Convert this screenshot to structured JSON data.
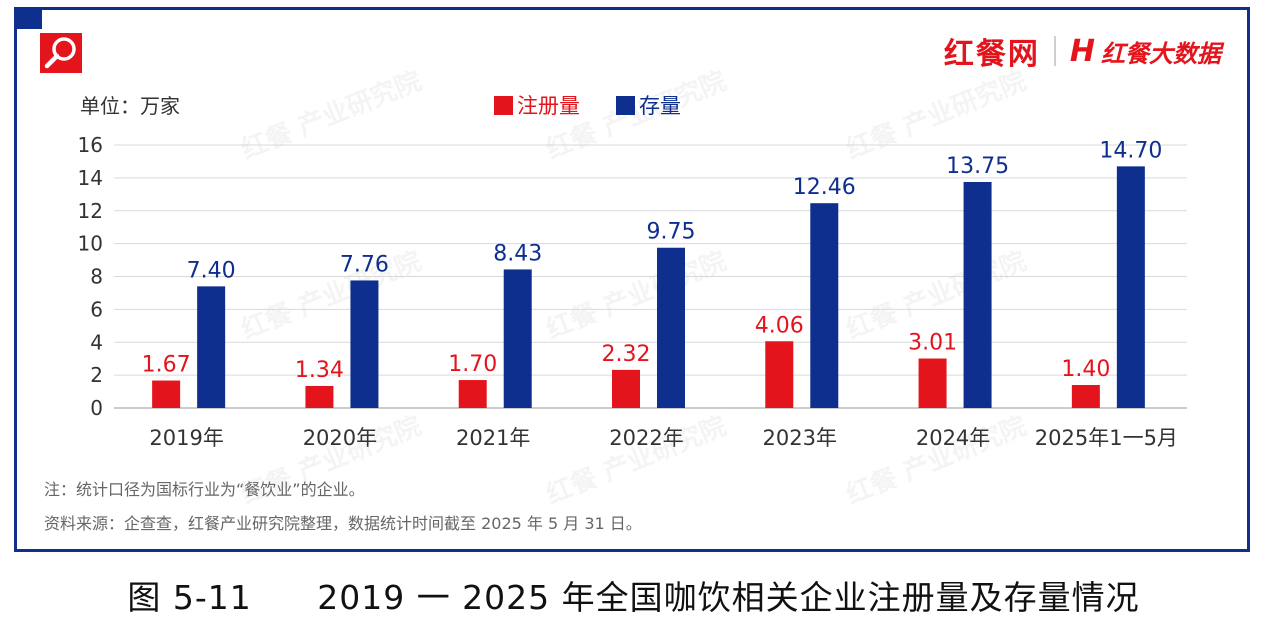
{
  "logo": {
    "left_text": "红餐网",
    "right_text": "红餐大数据",
    "mark": "H"
  },
  "watermark_text": "红餐 产业研究院",
  "unit_label": "单位：万家",
  "legend": [
    {
      "label": "注册量",
      "color": "#e4141d"
    },
    {
      "label": "存量",
      "color": "#0f2f8f"
    }
  ],
  "note": "注：统计口径为国标行业为“餐饮业”的企业。",
  "source": "资料来源：企查查，红餐产业研究院整理，数据统计时间截至 2025 年 5 月 31 日。",
  "caption": {
    "figure_no": "图 5-11",
    "title": "2019 一 2025 年全国咖饮相关企业注册量及存量情况"
  },
  "chart_data": {
    "type": "bar",
    "title": "2019 一 2025 年全国咖饮相关企业注册量及存量情况",
    "xlabel": "",
    "ylabel": "单位：万家",
    "ylim": [
      0,
      16
    ],
    "yticks": [
      0,
      2,
      4,
      6,
      8,
      10,
      12,
      14,
      16
    ],
    "grid": true,
    "categories": [
      "2019年",
      "2020年",
      "2021年",
      "2022年",
      "2023年",
      "2024年",
      "2025年1一5月"
    ],
    "series": [
      {
        "name": "注册量",
        "color": "#e4141d",
        "values": [
          1.67,
          1.34,
          1.7,
          2.32,
          4.06,
          3.01,
          1.4
        ],
        "labels": [
          "1.67",
          "1.34",
          "1.70",
          "2.32",
          "4.06",
          "3.01",
          "1.40"
        ]
      },
      {
        "name": "存量",
        "color": "#0f2f8f",
        "values": [
          7.4,
          7.76,
          8.43,
          9.75,
          12.46,
          13.75,
          14.7
        ],
        "labels": [
          "7.40",
          "7.76",
          "8.43",
          "9.75",
          "12.46",
          "13.75",
          "14.70"
        ]
      }
    ],
    "legend_position": "top-center"
  }
}
